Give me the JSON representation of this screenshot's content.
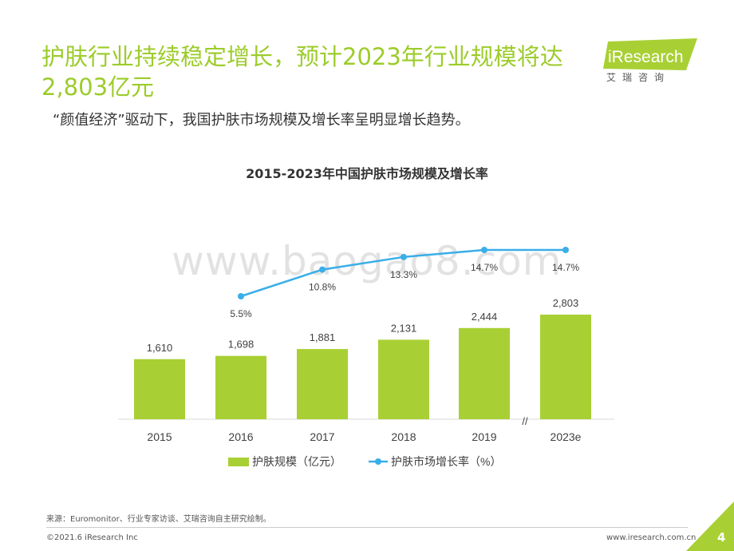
{
  "header": {
    "title": "护肤行业持续稳定增长，预计2023年行业规模将达2,803亿元",
    "subtitle": "“颜值经济”驱动下，我国护肤市场规模及增长率呈明显增长趋势。",
    "logo_text": "iResearch",
    "logo_cn": "艾瑞咨询"
  },
  "watermark": "www.baogao8.com",
  "colors": {
    "accent": "#9ccc2a",
    "bar": "#a8d034",
    "line": "#3aaee8"
  },
  "chart_data": {
    "type": "bar",
    "title": "2015-2023年中国护肤市场规模及增长率",
    "categories": [
      "2015",
      "2016",
      "2017",
      "2018",
      "2019",
      "2023e"
    ],
    "series": [
      {
        "name": "护肤规模（亿元）",
        "type": "bar",
        "values": [
          1610,
          1698,
          1881,
          2131,
          2444,
          2803
        ],
        "labels": [
          "1,610",
          "1,698",
          "1,881",
          "2,131",
          "2,444",
          "2,803"
        ]
      },
      {
        "name": "护肤市场增长率（%）",
        "type": "line",
        "values": [
          null,
          5.5,
          10.8,
          13.3,
          14.7,
          14.7
        ],
        "labels": [
          "",
          "5.5%",
          "10.8%",
          "13.3%",
          "14.7%",
          "14.7%"
        ]
      }
    ],
    "axis_break_marker": "//",
    "legend_position": "bottom"
  },
  "footer": {
    "source": "来源：Euromonitor、行业专家访谈、艾瑞咨询自主研究绘制。",
    "copyright": "©2021.6 iResearch Inc",
    "url": "www.iresearch.com.cn",
    "page": "4"
  }
}
